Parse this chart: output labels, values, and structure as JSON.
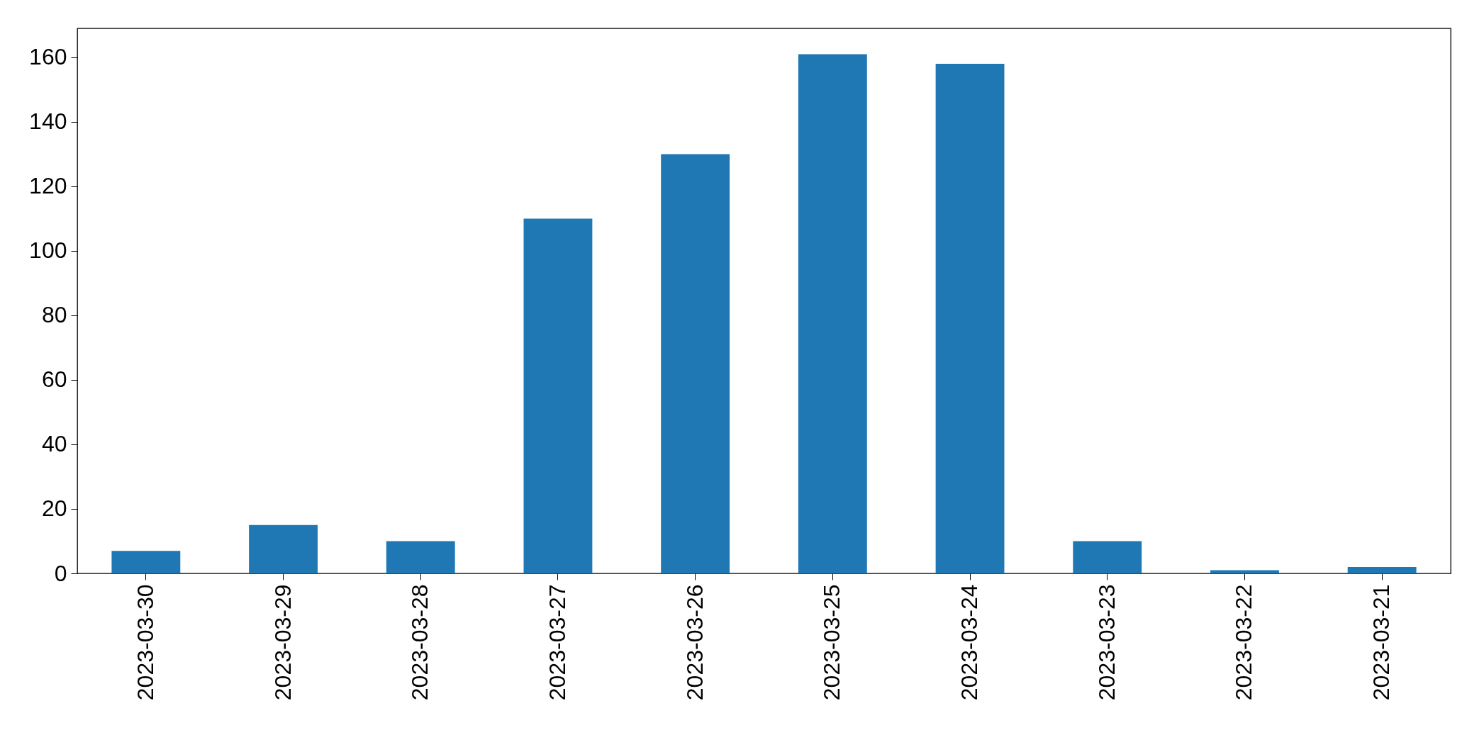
{
  "chart_data": {
    "type": "bar",
    "categories": [
      "2023-03-30",
      "2023-03-29",
      "2023-03-28",
      "2023-03-27",
      "2023-03-26",
      "2023-03-25",
      "2023-03-24",
      "2023-03-23",
      "2023-03-22",
      "2023-03-21"
    ],
    "values": [
      7,
      15,
      10,
      110,
      130,
      161,
      158,
      10,
      1,
      2
    ],
    "color": "#1f77b4",
    "ylim": [
      0,
      169
    ],
    "yticks": [
      0,
      20,
      40,
      60,
      80,
      100,
      120,
      140,
      160
    ],
    "grid": false
  }
}
